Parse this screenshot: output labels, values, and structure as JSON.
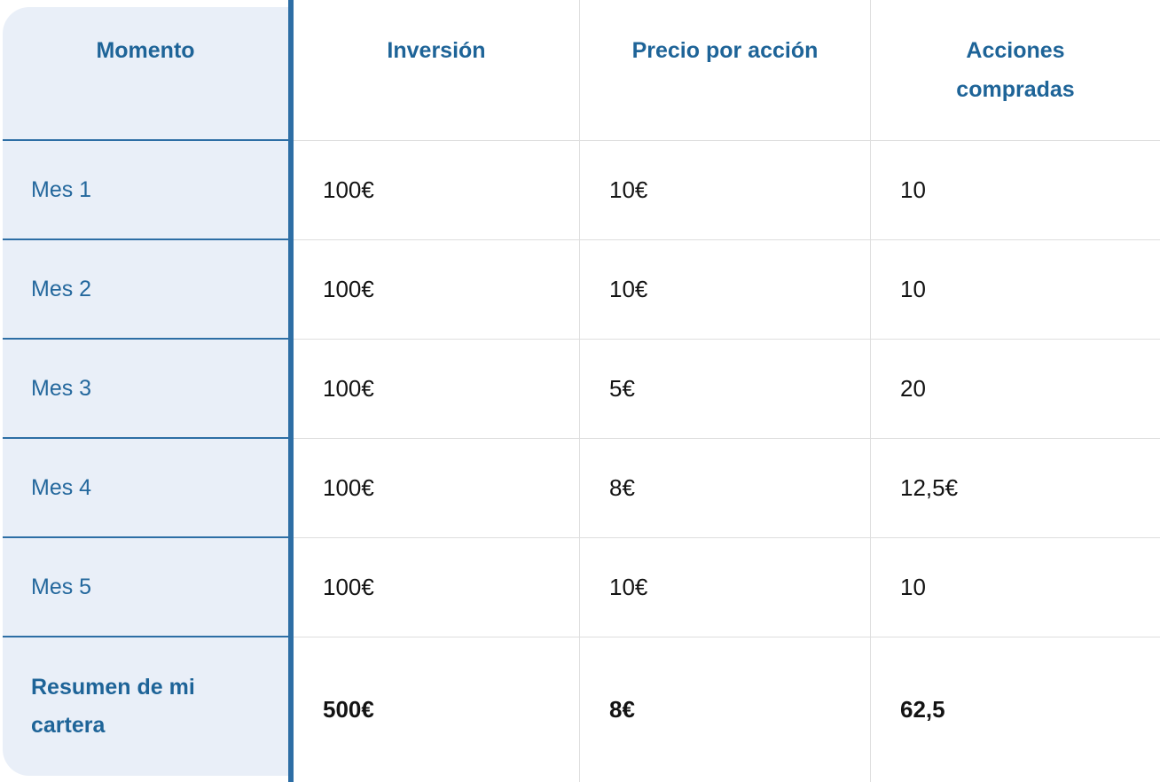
{
  "chart_data": {
    "type": "table",
    "columns": [
      "Momento",
      "Inversión",
      "Precio por acción",
      "Acciones compradas"
    ],
    "rows": [
      [
        "Mes 1",
        "100€",
        "10€",
        "10"
      ],
      [
        "Mes 2",
        "100€",
        "10€",
        "10"
      ],
      [
        "Mes 3",
        "100€",
        "5€",
        "20"
      ],
      [
        "Mes 4",
        "100€",
        "8€",
        "12,5€"
      ],
      [
        "Mes 5",
        "100€",
        "10€",
        "10"
      ]
    ],
    "summary_row": [
      "Resumen de mi cartera",
      "500€",
      "8€",
      "62,5"
    ]
  },
  "colors": {
    "accent_text_blue": "#1e6498",
    "accent_border_blue": "#2d6ea5",
    "light_blue_bg": "#e9eff8",
    "grid_gray": "#dedede",
    "value_text": "#131313"
  }
}
